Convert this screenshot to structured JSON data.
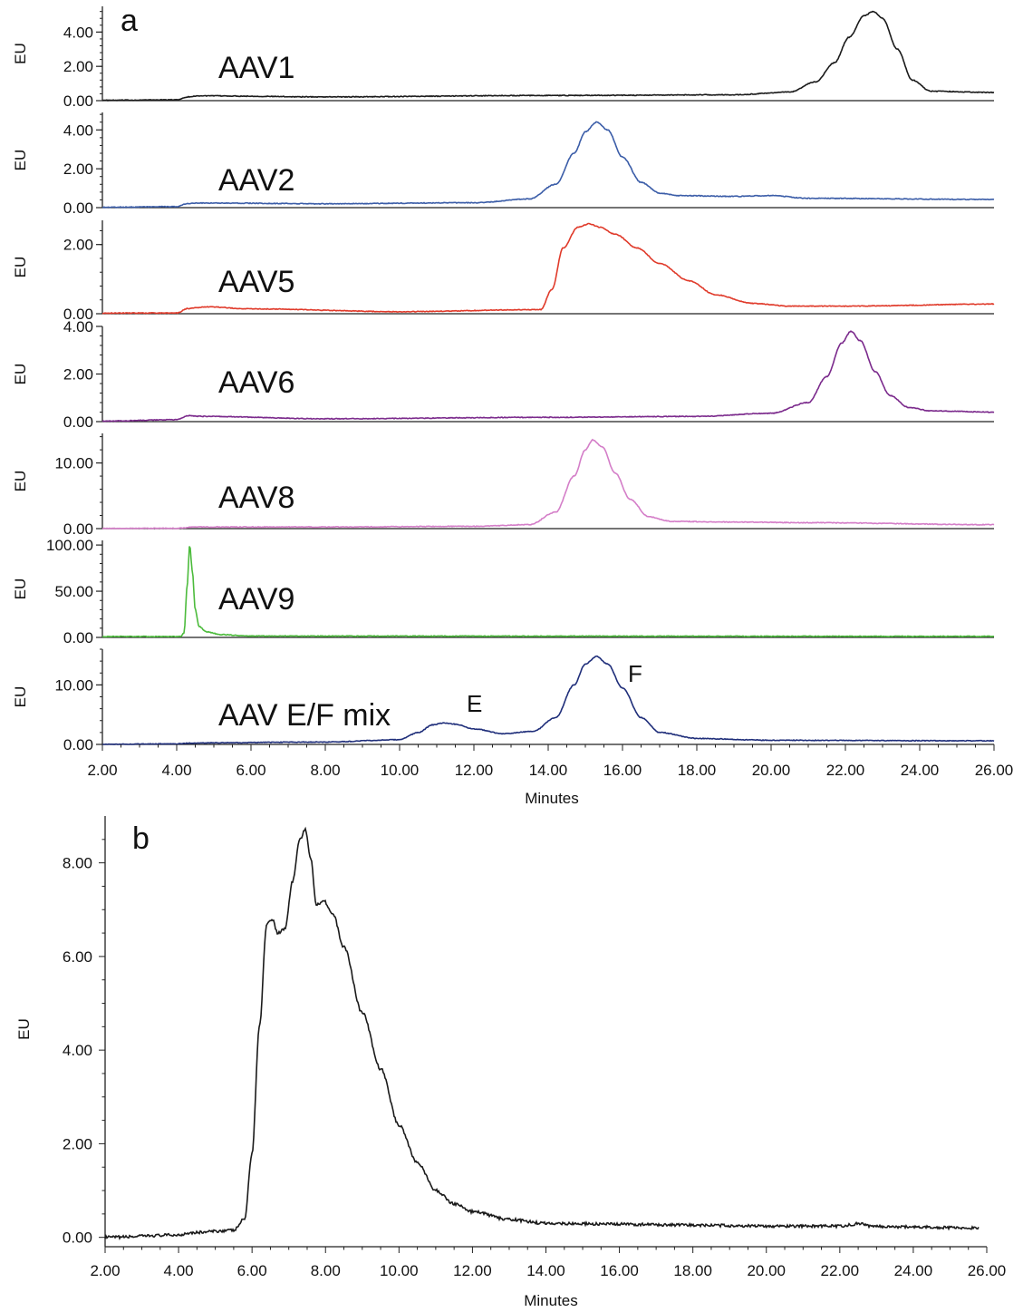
{
  "chart_data": [
    {
      "panel": "a",
      "type": "line",
      "xlabel": "Minutes",
      "ylabel": "EU",
      "xlim": [
        2,
        26
      ],
      "x_ticks": [
        "2.00",
        "4.00",
        "6.00",
        "8.00",
        "10.00",
        "12.00",
        "14.00",
        "16.00",
        "18.00",
        "20.00",
        "22.00",
        "24.00",
        "26.00"
      ],
      "grid": false,
      "legend": "none",
      "series": [
        {
          "name": "AAV1",
          "color": "#1a1a1a",
          "ylim": [
            0,
            5.5
          ],
          "y_ticks": [
            "0.00",
            "2.00",
            "4.00"
          ],
          "x": [
            2.0,
            4.0,
            4.3,
            4.6,
            8.0,
            14.0,
            19.0,
            20.5,
            21.2,
            21.7,
            22.1,
            22.5,
            22.75,
            23.0,
            23.4,
            23.8,
            24.3,
            26.0
          ],
          "y": [
            0.02,
            0.05,
            0.22,
            0.28,
            0.22,
            0.3,
            0.34,
            0.5,
            1.1,
            2.2,
            3.7,
            4.95,
            5.2,
            4.8,
            3.0,
            1.2,
            0.55,
            0.48
          ]
        },
        {
          "name": "AAV2",
          "color": "#3b5da8",
          "ylim": [
            0,
            4.9
          ],
          "y_ticks": [
            "0.00",
            "2.00",
            "4.00"
          ],
          "x": [
            2.0,
            4.0,
            4.3,
            4.6,
            8.0,
            12.0,
            13.5,
            14.2,
            14.7,
            15.0,
            15.3,
            15.6,
            16.0,
            16.5,
            17.0,
            17.5,
            19.0,
            20.0,
            21.0,
            26.0
          ],
          "y": [
            0.02,
            0.05,
            0.22,
            0.24,
            0.2,
            0.25,
            0.45,
            1.2,
            2.8,
            3.9,
            4.4,
            4.0,
            2.6,
            1.3,
            0.75,
            0.62,
            0.58,
            0.62,
            0.48,
            0.42
          ],
          "label_text": "AAV2"
        },
        {
          "name": "AAV5",
          "color": "#e03a2a",
          "ylim": [
            0,
            2.7
          ],
          "y_ticks": [
            "0.00",
            "2.00"
          ],
          "x": [
            2.0,
            4.0,
            4.3,
            4.8,
            6.0,
            10.0,
            13.8,
            14.1,
            14.4,
            14.8,
            15.1,
            15.4,
            15.8,
            16.4,
            17.0,
            17.8,
            18.5,
            19.5,
            20.5,
            22.0,
            26.0
          ],
          "y": [
            0.02,
            0.02,
            0.15,
            0.2,
            0.14,
            0.06,
            0.12,
            0.7,
            1.9,
            2.5,
            2.6,
            2.5,
            2.3,
            1.9,
            1.45,
            0.95,
            0.55,
            0.3,
            0.22,
            0.22,
            0.28
          ]
        },
        {
          "name": "AAV6",
          "color": "#7b2a8c",
          "ylim": [
            0,
            4.0
          ],
          "y_ticks": [
            "0.00",
            "2.00",
            "4.00"
          ],
          "x": [
            2.0,
            4.0,
            4.3,
            4.7,
            8.0,
            14.0,
            18.0,
            20.0,
            21.0,
            21.5,
            21.9,
            22.15,
            22.4,
            22.8,
            23.2,
            23.7,
            24.3,
            26.0
          ],
          "y": [
            0.02,
            0.08,
            0.25,
            0.22,
            0.12,
            0.18,
            0.22,
            0.35,
            0.8,
            1.9,
            3.3,
            3.8,
            3.4,
            2.1,
            1.1,
            0.6,
            0.45,
            0.4
          ]
        },
        {
          "name": "AAV8",
          "color": "#d47ec8",
          "ylim": [
            0,
            14.5
          ],
          "y_ticks": [
            "0.00",
            "10.00"
          ],
          "x": [
            2.0,
            4.0,
            4.5,
            8.0,
            12.0,
            13.5,
            14.2,
            14.7,
            15.0,
            15.2,
            15.45,
            15.8,
            16.2,
            16.7,
            17.3,
            19.0,
            21.0,
            26.0
          ],
          "y": [
            0.02,
            0.05,
            0.25,
            0.25,
            0.35,
            0.6,
            2.5,
            8.0,
            12.0,
            13.5,
            12.5,
            8.5,
            4.5,
            1.8,
            1.1,
            1.0,
            0.9,
            0.6
          ]
        },
        {
          "name": "AAV9",
          "color": "#4cbb3c",
          "ylim": [
            0,
            105
          ],
          "y_ticks": [
            "0.00",
            "50.00",
            "100.00"
          ],
          "x": [
            2.0,
            4.1,
            4.2,
            4.28,
            4.35,
            4.42,
            4.5,
            4.6,
            4.8,
            5.2,
            5.8,
            6.0,
            26.0
          ],
          "y": [
            1.0,
            1.0,
            5.0,
            55.0,
            100.0,
            72.0,
            30.0,
            12.0,
            6.0,
            3.0,
            2.0,
            1.5,
            1.2
          ]
        },
        {
          "name": "AAV E/F mix",
          "color": "#1f2e7a",
          "ylim": [
            0,
            16
          ],
          "y_ticks": [
            "0.00",
            "10.00"
          ],
          "x": [
            2.0,
            4.0,
            4.5,
            8.0,
            10.0,
            10.5,
            10.9,
            11.2,
            11.5,
            12.0,
            12.8,
            13.6,
            14.2,
            14.7,
            15.0,
            15.3,
            15.6,
            16.0,
            16.5,
            17.0,
            18.0,
            20.0,
            26.0
          ],
          "y": [
            0.0,
            0.1,
            0.25,
            0.4,
            0.8,
            2.0,
            3.3,
            3.6,
            3.4,
            2.6,
            1.8,
            2.2,
            4.5,
            10.0,
            13.5,
            14.8,
            13.5,
            9.5,
            4.5,
            2.0,
            1.0,
            0.7,
            0.6
          ]
        }
      ],
      "annotations": [
        "E",
        "F"
      ]
    },
    {
      "panel": "b",
      "type": "line",
      "xlabel": "Minutes",
      "ylabel": "EU",
      "xlim": [
        2,
        26
      ],
      "ylim": [
        -0.2,
        9.0
      ],
      "x_ticks": [
        "2.00",
        "4.00",
        "6.00",
        "8.00",
        "10.00",
        "12.00",
        "14.00",
        "16.00",
        "18.00",
        "20.00",
        "22.00",
        "24.00",
        "26.00"
      ],
      "y_ticks": [
        "0.00",
        "2.00",
        "4.00",
        "6.00",
        "8.00"
      ],
      "grid": false,
      "legend": "none",
      "series": [
        {
          "color": "#1a1a1a",
          "x": [
            2.0,
            4.0,
            4.3,
            5.5,
            5.8,
            6.0,
            6.2,
            6.4,
            6.55,
            6.7,
            6.9,
            7.1,
            7.3,
            7.45,
            7.6,
            7.75,
            7.95,
            8.2,
            8.5,
            9.0,
            9.5,
            10.0,
            10.5,
            11.0,
            11.5,
            12.0,
            13.0,
            14.0,
            16.0,
            18.0,
            20.0,
            22.0,
            22.6,
            22.8,
            24.0,
            25.8
          ],
          "y": [
            0.0,
            0.05,
            0.1,
            0.15,
            0.4,
            1.8,
            4.5,
            6.7,
            6.8,
            6.5,
            6.6,
            7.6,
            8.5,
            8.7,
            8.1,
            7.1,
            7.2,
            6.9,
            6.2,
            4.8,
            3.6,
            2.4,
            1.6,
            1.0,
            0.72,
            0.55,
            0.38,
            0.3,
            0.28,
            0.26,
            0.24,
            0.24,
            0.3,
            0.24,
            0.22,
            0.2
          ]
        }
      ]
    }
  ],
  "panel_a": {
    "letter": "a",
    "xlabel": "Minutes",
    "ylabel": "EU",
    "trace_labels": [
      "AAV1",
      "AAV2",
      "AAV5",
      "AAV6",
      "AAV8",
      "AAV9",
      "AAV E/F mix"
    ],
    "annotation_e": "E",
    "annotation_f": "F"
  },
  "panel_b": {
    "letter": "b",
    "xlabel": "Minutes",
    "ylabel": "EU"
  }
}
